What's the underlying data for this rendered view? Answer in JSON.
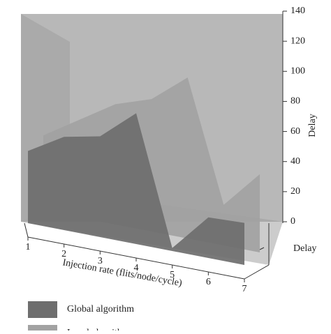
{
  "chart_data": {
    "type": "area3d",
    "x_label": "Injection rate (flits/node/cycle)",
    "y_label": "Delay",
    "z_label": "Delay",
    "categories": [
      "1",
      "2",
      "3",
      "4",
      "5",
      "6",
      "7"
    ],
    "series": [
      {
        "name": "Global algorithm",
        "color": "#6e6e6e",
        "values": [
          48,
          62,
          67,
          87,
          2,
          27,
          28
        ]
      },
      {
        "name": "Local algorithm",
        "color": "#a2a2a2",
        "values": [
          50,
          65,
          80,
          88,
          107,
          27,
          52
        ]
      }
    ],
    "ylim": [
      0,
      140
    ],
    "yticks": [
      0,
      20,
      40,
      60,
      80,
      100,
      120,
      140
    ]
  }
}
